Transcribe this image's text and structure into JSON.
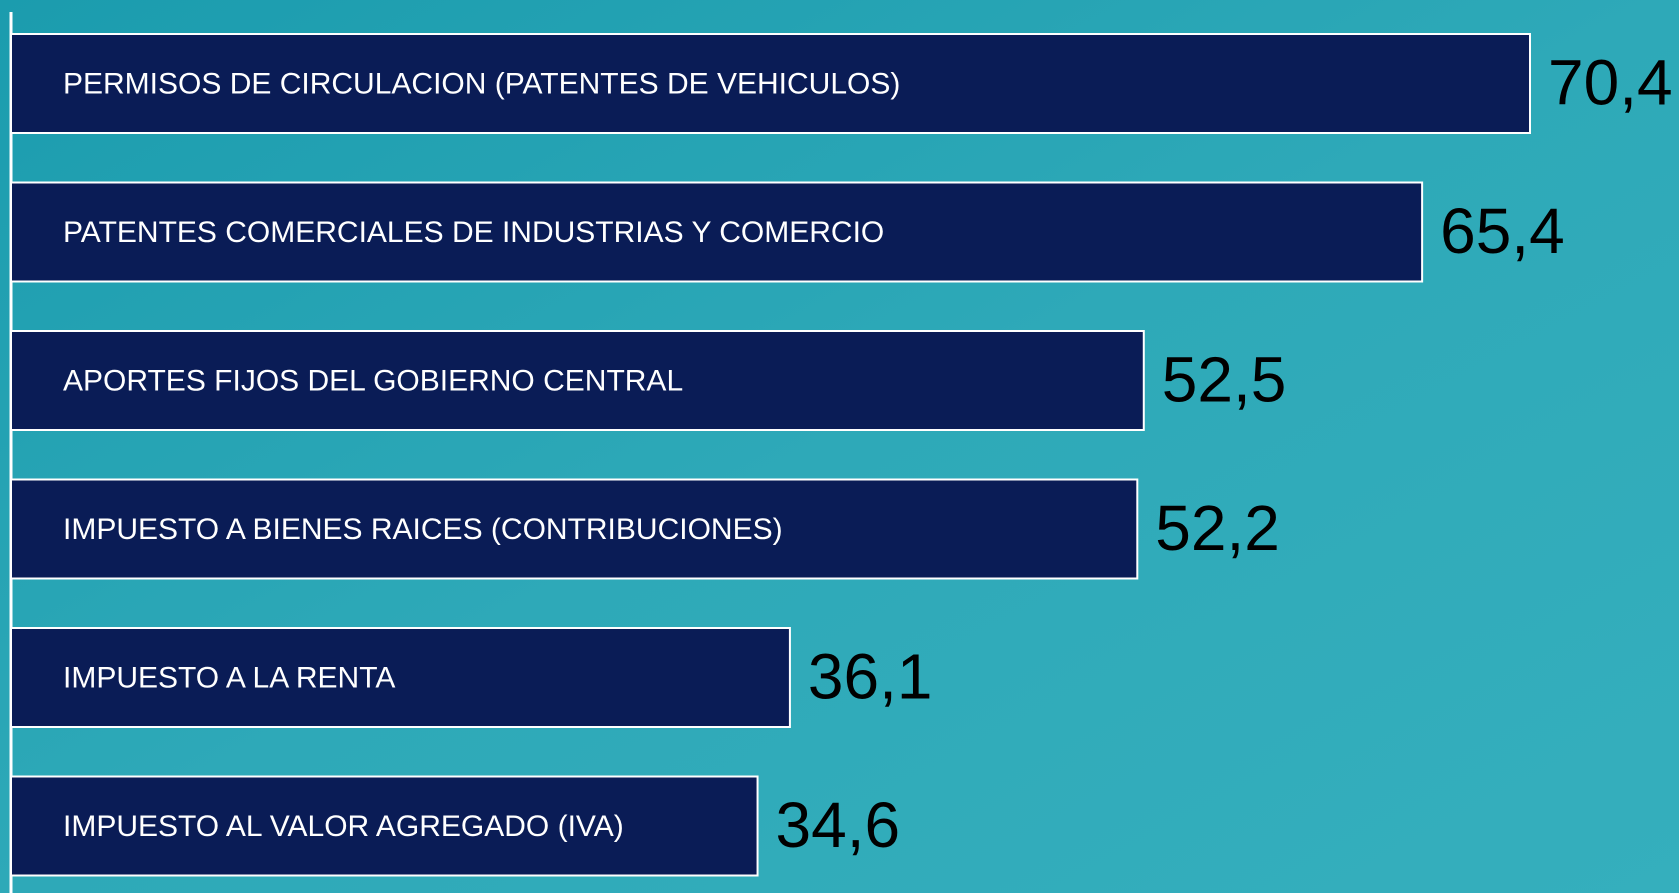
{
  "chart_data": {
    "type": "bar",
    "orientation": "horizontal",
    "categories": [
      "PERMISOS DE CIRCULACION (PATENTES DE VEHICULOS)",
      "PATENTES COMERCIALES DE INDUSTRIAS Y COMERCIO",
      "APORTES FIJOS DEL GOBIERNO CENTRAL",
      "IMPUESTO A BIENES RAICES (CONTRIBUCIONES)",
      "IMPUESTO A LA RENTA",
      "IMPUESTO AL VALOR AGREGADO (IVA)"
    ],
    "values": [
      70.4,
      65.4,
      52.5,
      52.2,
      36.1,
      34.6
    ],
    "value_labels": [
      "70,4",
      "65,4",
      "52,5",
      "52,2",
      "36,1",
      "34,6"
    ],
    "color": "#0a1c56"
  }
}
